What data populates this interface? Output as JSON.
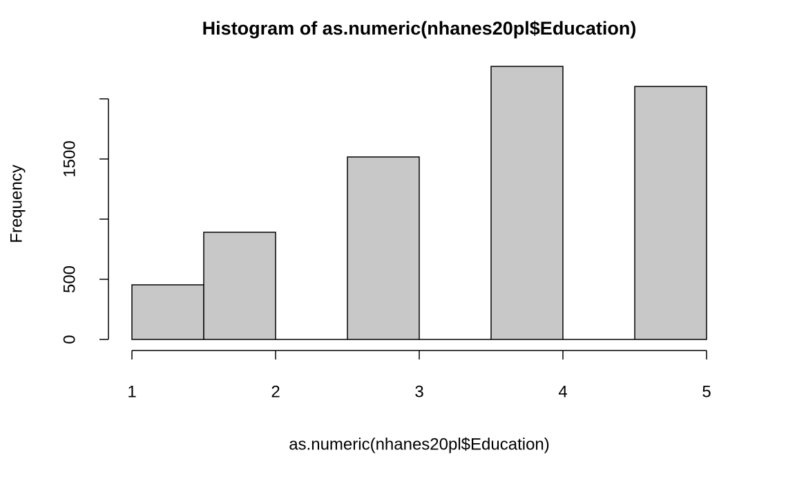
{
  "chart_data": {
    "type": "histogram",
    "title": "Histogram of as.numeric(nhanes20pl$Education)",
    "x_label": "as.numeric(nhanes20pl$Education)",
    "y_label": "Frequency",
    "bins": [
      1,
      1.5,
      2,
      2.5,
      3,
      3.5,
      4,
      4.5,
      5
    ],
    "values": [
      454,
      891,
      0,
      1517,
      0,
      2270,
      0,
      2103
    ],
    "color": "#c8c8c8",
    "xlim": [
      1,
      5
    ],
    "xticks": [
      1,
      2,
      3,
      4,
      5
    ],
    "ylim": [
      0,
      2270
    ],
    "yticks": [
      0,
      500,
      {
        "value": 1000,
        "label": null
      },
      1500,
      {
        "value": 2000,
        "label": null
      }
    ]
  }
}
